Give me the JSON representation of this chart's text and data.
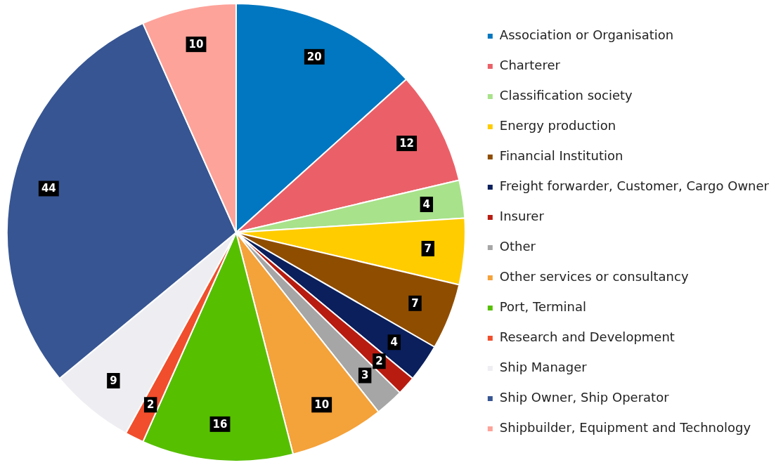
{
  "chart_data": {
    "type": "pie",
    "categories": [
      "Association or Organisation",
      "Charterer",
      "Classification society",
      "Energy production",
      "Financial Institution",
      "Freight forwarder, Customer, Cargo Owner",
      "Insurer",
      "Other",
      "Other services or consultancy",
      "Port, Terminal",
      "Research and Development",
      "Ship Manager",
      "Ship Owner, Ship Operator",
      "Shipbuilder, Equipment and Technology"
    ],
    "values": [
      20,
      12,
      4,
      7,
      7,
      4,
      2,
      3,
      10,
      16,
      2,
      9,
      44,
      10
    ],
    "colors": [
      "#0077c0",
      "#eb6068",
      "#a8e28a",
      "#ffcc00",
      "#8f4d00",
      "#0a1f5c",
      "#b81c10",
      "#a6a6a6",
      "#f4a23a",
      "#56bf00",
      "#f04e2c",
      "#eeeef2",
      "#375592",
      "#fda39a"
    ],
    "data_labels": true,
    "legend": "right"
  }
}
